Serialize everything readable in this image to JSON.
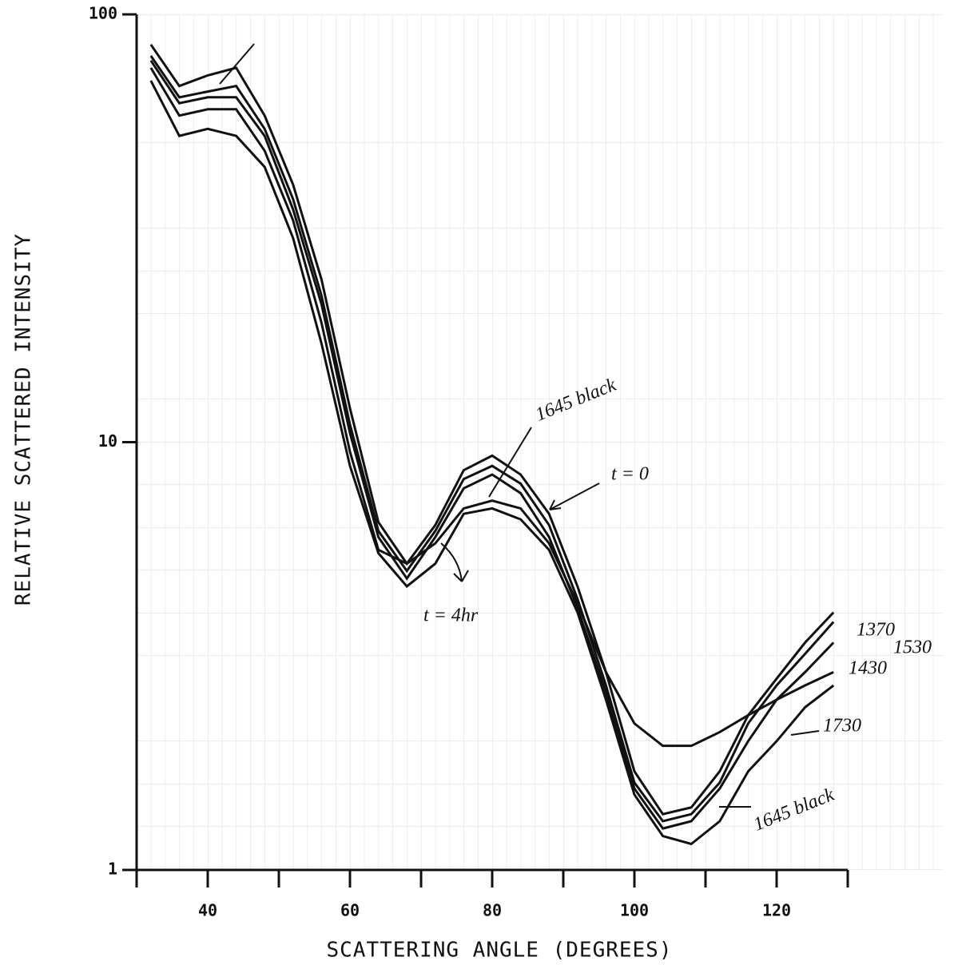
{
  "chart_data": {
    "type": "line",
    "y_label": "RELATIVE SCATTERED INTENSITY",
    "x_label": "SCATTERING ANGLE (DEGREES)",
    "log_y": true,
    "xlim": [
      30,
      130
    ],
    "ylim": [
      1,
      100
    ],
    "xticks": [
      40,
      60,
      80,
      100,
      120
    ],
    "x_minor_ticks": [
      30,
      50,
      70,
      90,
      110,
      130
    ],
    "yticks": [
      1,
      10,
      100
    ],
    "x": [
      32,
      36,
      40,
      44,
      48,
      52,
      56,
      60,
      64,
      68,
      72,
      76,
      80,
      84,
      88,
      92,
      96,
      100,
      104,
      108,
      112,
      116,
      120,
      124,
      128
    ],
    "series": [
      {
        "name": "1370",
        "color": "#111",
        "values": [
          85,
          68,
          72,
          75,
          58,
          40,
          24,
          12,
          6.5,
          5.2,
          6.4,
          8.6,
          9.3,
          8.4,
          6.8,
          4.6,
          2.9,
          1.7,
          1.35,
          1.4,
          1.7,
          2.3,
          2.8,
          3.4,
          4.0
        ]
      },
      {
        "name": "1530",
        "color": "#111",
        "values": [
          80,
          64,
          66,
          68,
          54,
          37,
          22,
          11,
          6.2,
          5.0,
          6.2,
          8.2,
          8.8,
          8.0,
          6.4,
          4.3,
          2.7,
          1.6,
          1.3,
          1.35,
          1.6,
          2.2,
          2.7,
          3.2,
          3.8
        ]
      },
      {
        "name": "1430",
        "color": "#111",
        "values": [
          78,
          62,
          64,
          64,
          52,
          35,
          21,
          10.5,
          6.0,
          4.8,
          6.0,
          7.8,
          8.4,
          7.6,
          6.0,
          4.1,
          2.6,
          1.55,
          1.25,
          1.3,
          1.55,
          2.0,
          2.5,
          2.9,
          3.4
        ]
      },
      {
        "name": "1730",
        "color": "#111",
        "values": [
          75,
          58,
          60,
          60,
          48,
          33,
          19,
          9.5,
          5.6,
          5.2,
          5.8,
          7.0,
          7.3,
          7.0,
          5.8,
          4.2,
          2.9,
          2.2,
          1.95,
          1.95,
          2.1,
          2.3,
          2.5,
          2.7,
          2.9
        ]
      },
      {
        "name": "1645 black",
        "color": "#111",
        "values": [
          70,
          52,
          54,
          52,
          44,
          30,
          17,
          8.8,
          5.5,
          4.6,
          5.2,
          6.8,
          7.0,
          6.6,
          5.6,
          4.0,
          2.5,
          1.5,
          1.2,
          1.15,
          1.3,
          1.7,
          2.0,
          2.4,
          2.7
        ]
      }
    ],
    "annotations": [
      "t = 0",
      "t = 4hr",
      "1645 black"
    ]
  }
}
